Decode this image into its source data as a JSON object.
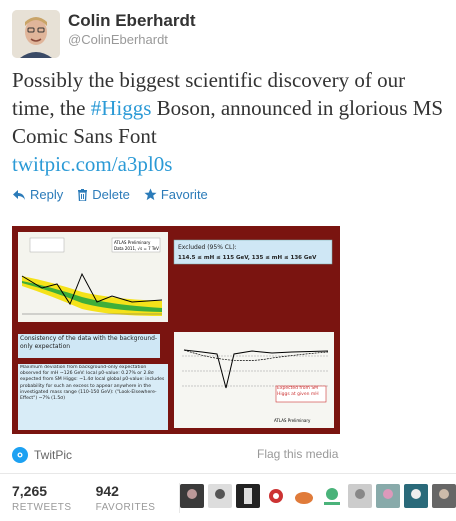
{
  "author": {
    "name": "Colin Eberhardt",
    "handle": "@ColinEberhardt"
  },
  "tweet": {
    "text_part1": "Possibly the biggest scientific discovery of our time, the ",
    "hashtag": "#Higgs",
    "text_part2": " Boson, announced in glorious MS Comic Sans Font",
    "link": "twitpic.com/a3pl0s"
  },
  "actions": {
    "reply": "Reply",
    "delete": "Delete",
    "favorite": "Favorite"
  },
  "media": {
    "source": "TwitPic",
    "flag": "Flag this media",
    "slide": {
      "excluded_title": "Excluded (95% CL):",
      "excluded_range": "114.5 ≤ mH ≤ 115 GeV, 135 ≤ mH ≤ 136 GeV",
      "consistency": "Consistency of the data with the background-only expectation",
      "deviation_text": "Maximum deviation from background-only expectation observed for mH ~126 GeV: local p0-value: 0.27% or 2.8σ expected from SM Higgs: ~1.4σ local global p0-value: includes probability for such an excess to appear anywhere in the investigated mass range (110-150 GeV): (\"Look-Elsewhere-Effect\") ~7% (1.5σ)",
      "expected_text": "Expected from SM Higgs at given mH",
      "atlas_label": "ATLAS Preliminary",
      "data_label": "Data 2011, √s = 7 TeV"
    }
  },
  "stats": {
    "retweets_count": "7,265",
    "retweets_label": "RETWEETS",
    "favorites_count": "942",
    "favorites_label": "FAVORITES"
  },
  "colors": {
    "link": "#2b9ad6",
    "action": "#2b7bb9",
    "slide_bg": "#7a1410"
  }
}
